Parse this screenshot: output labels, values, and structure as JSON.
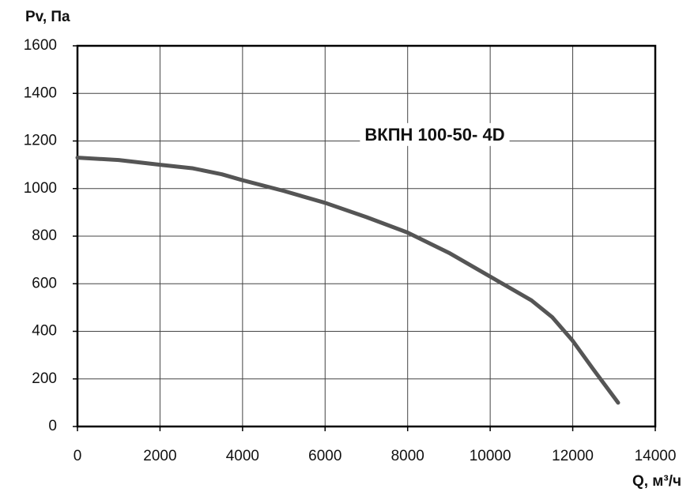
{
  "chart_data": {
    "type": "line",
    "annotation": "ВКПН 100-50- 4D",
    "y_label": "Pv, Па",
    "x_label": "Q, м³/ч",
    "x": [
      0,
      1000,
      2000,
      2800,
      3500,
      4000,
      5000,
      6000,
      7000,
      8000,
      9000,
      10000,
      11000,
      11500,
      12000,
      12500,
      13100
    ],
    "series": [
      {
        "color": "#555555",
        "values": [
          1130,
          1120,
          1100,
          1085,
          1060,
          1035,
          990,
          940,
          880,
          815,
          730,
          630,
          530,
          460,
          360,
          240,
          100
        ]
      }
    ],
    "xlim": [
      0,
      14000
    ],
    "ylim": [
      0,
      1600
    ],
    "xticks": [
      0,
      2000,
      4000,
      6000,
      8000,
      10000,
      12000,
      14000
    ],
    "yticks": [
      0,
      200,
      400,
      600,
      800,
      1000,
      1200,
      1400,
      1600
    ],
    "grid": true
  }
}
